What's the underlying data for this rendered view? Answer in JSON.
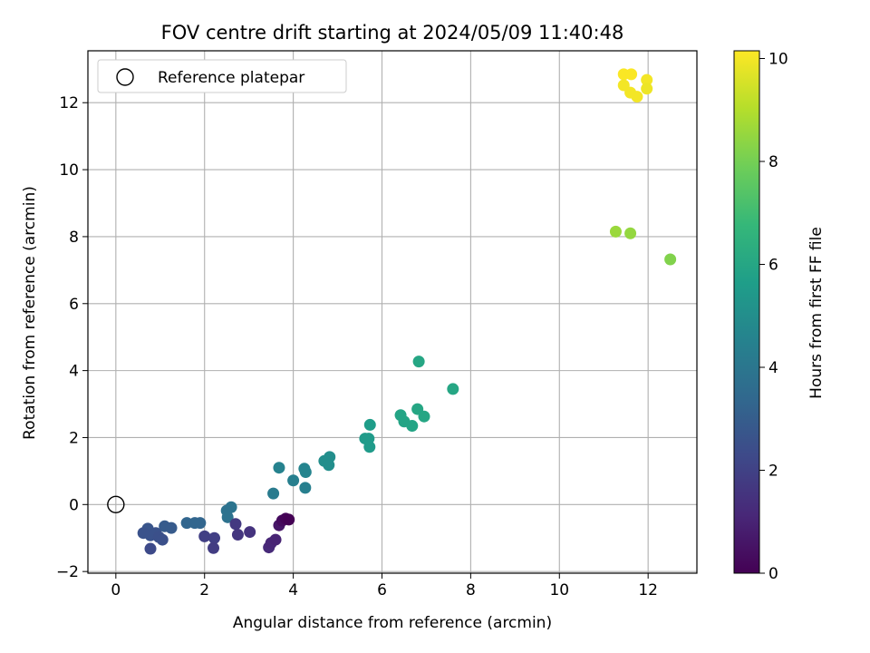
{
  "chart_data": {
    "type": "scatter",
    "title": "FOV centre drift starting at 2024/05/09 11:40:48",
    "xlabel": "Angular distance from reference (arcmin)",
    "ylabel": "Rotation from reference (arcmin)",
    "xlim": [
      -0.63,
      13.1
    ],
    "ylim": [
      -2.05,
      13.55
    ],
    "xticks": [
      0,
      2,
      4,
      6,
      8,
      10,
      12
    ],
    "yticks": [
      -2,
      0,
      2,
      4,
      6,
      8,
      10,
      12
    ],
    "grid": true,
    "legend": {
      "placement": "top-left",
      "entries": [
        "Reference platepar"
      ]
    },
    "reference_point": {
      "x": 0,
      "y": 0
    },
    "colorbar": {
      "label": "Hours from first FF file",
      "range": [
        0,
        10.15
      ],
      "ticks": [
        0,
        2,
        4,
        6,
        8,
        10
      ],
      "colormap": [
        "#440154",
        "#482878",
        "#3e4989",
        "#31688e",
        "#26828e",
        "#1f9e89",
        "#35b779",
        "#6ece58",
        "#b5de2b",
        "#fde725"
      ]
    },
    "points": [
      {
        "x": 11.45,
        "y": 12.85,
        "c": 10.1
      },
      {
        "x": 11.62,
        "y": 12.85,
        "c": 10.1
      },
      {
        "x": 11.45,
        "y": 12.52,
        "c": 10.0
      },
      {
        "x": 11.6,
        "y": 12.3,
        "c": 10.0
      },
      {
        "x": 11.75,
        "y": 12.18,
        "c": 10.0
      },
      {
        "x": 11.97,
        "y": 12.68,
        "c": 10.0
      },
      {
        "x": 11.97,
        "y": 12.42,
        "c": 9.9
      },
      {
        "x": 11.27,
        "y": 8.15,
        "c": 8.6
      },
      {
        "x": 11.6,
        "y": 8.1,
        "c": 8.5
      },
      {
        "x": 12.5,
        "y": 7.32,
        "c": 8.2
      },
      {
        "x": 6.83,
        "y": 4.27,
        "c": 6.0
      },
      {
        "x": 7.6,
        "y": 3.45,
        "c": 6.0
      },
      {
        "x": 6.8,
        "y": 2.85,
        "c": 6.0
      },
      {
        "x": 6.95,
        "y": 2.63,
        "c": 6.0
      },
      {
        "x": 6.42,
        "y": 2.67,
        "c": 5.9
      },
      {
        "x": 6.5,
        "y": 2.48,
        "c": 5.9
      },
      {
        "x": 6.68,
        "y": 2.35,
        "c": 5.9
      },
      {
        "x": 5.73,
        "y": 2.38,
        "c": 5.6
      },
      {
        "x": 5.62,
        "y": 1.97,
        "c": 5.5
      },
      {
        "x": 5.7,
        "y": 1.97,
        "c": 5.5
      },
      {
        "x": 5.72,
        "y": 1.72,
        "c": 5.5
      },
      {
        "x": 4.82,
        "y": 1.42,
        "c": 5.0
      },
      {
        "x": 4.7,
        "y": 1.3,
        "c": 5.0
      },
      {
        "x": 4.8,
        "y": 1.18,
        "c": 5.0
      },
      {
        "x": 4.25,
        "y": 1.07,
        "c": 4.6
      },
      {
        "x": 4.28,
        "y": 0.97,
        "c": 4.6
      },
      {
        "x": 3.68,
        "y": 1.1,
        "c": 4.5
      },
      {
        "x": 4.0,
        "y": 0.72,
        "c": 4.4
      },
      {
        "x": 4.27,
        "y": 0.5,
        "c": 4.4
      },
      {
        "x": 3.55,
        "y": 0.33,
        "c": 4.2
      },
      {
        "x": 2.6,
        "y": -0.08,
        "c": 3.9
      },
      {
        "x": 2.5,
        "y": -0.18,
        "c": 3.8
      },
      {
        "x": 2.52,
        "y": -0.38,
        "c": 3.8
      },
      {
        "x": 1.6,
        "y": -0.55,
        "c": 3.3
      },
      {
        "x": 1.78,
        "y": -0.55,
        "c": 3.3
      },
      {
        "x": 1.9,
        "y": -0.55,
        "c": 3.3
      },
      {
        "x": 1.1,
        "y": -0.65,
        "c": 2.9
      },
      {
        "x": 1.25,
        "y": -0.7,
        "c": 2.9
      },
      {
        "x": 0.72,
        "y": -0.72,
        "c": 2.7
      },
      {
        "x": 0.62,
        "y": -0.85,
        "c": 2.6
      },
      {
        "x": 0.78,
        "y": -0.92,
        "c": 2.6
      },
      {
        "x": 0.9,
        "y": -0.85,
        "c": 2.6
      },
      {
        "x": 0.97,
        "y": -0.97,
        "c": 2.5
      },
      {
        "x": 1.05,
        "y": -1.05,
        "c": 2.5
      },
      {
        "x": 0.78,
        "y": -1.32,
        "c": 2.3
      },
      {
        "x": 2.0,
        "y": -0.95,
        "c": 1.9
      },
      {
        "x": 2.22,
        "y": -1.0,
        "c": 1.9
      },
      {
        "x": 2.2,
        "y": -1.3,
        "c": 1.8
      },
      {
        "x": 2.7,
        "y": -0.58,
        "c": 1.7
      },
      {
        "x": 2.75,
        "y": -0.9,
        "c": 1.6
      },
      {
        "x": 3.02,
        "y": -0.82,
        "c": 1.5
      },
      {
        "x": 3.45,
        "y": -1.28,
        "c": 1.2
      },
      {
        "x": 3.5,
        "y": -1.15,
        "c": 1.1
      },
      {
        "x": 3.6,
        "y": -1.05,
        "c": 1.0
      },
      {
        "x": 3.68,
        "y": -0.62,
        "c": 0.6
      },
      {
        "x": 3.75,
        "y": -0.48,
        "c": 0.3
      },
      {
        "x": 3.83,
        "y": -0.42,
        "c": 0.1
      },
      {
        "x": 3.9,
        "y": -0.45,
        "c": 0.0
      }
    ]
  }
}
